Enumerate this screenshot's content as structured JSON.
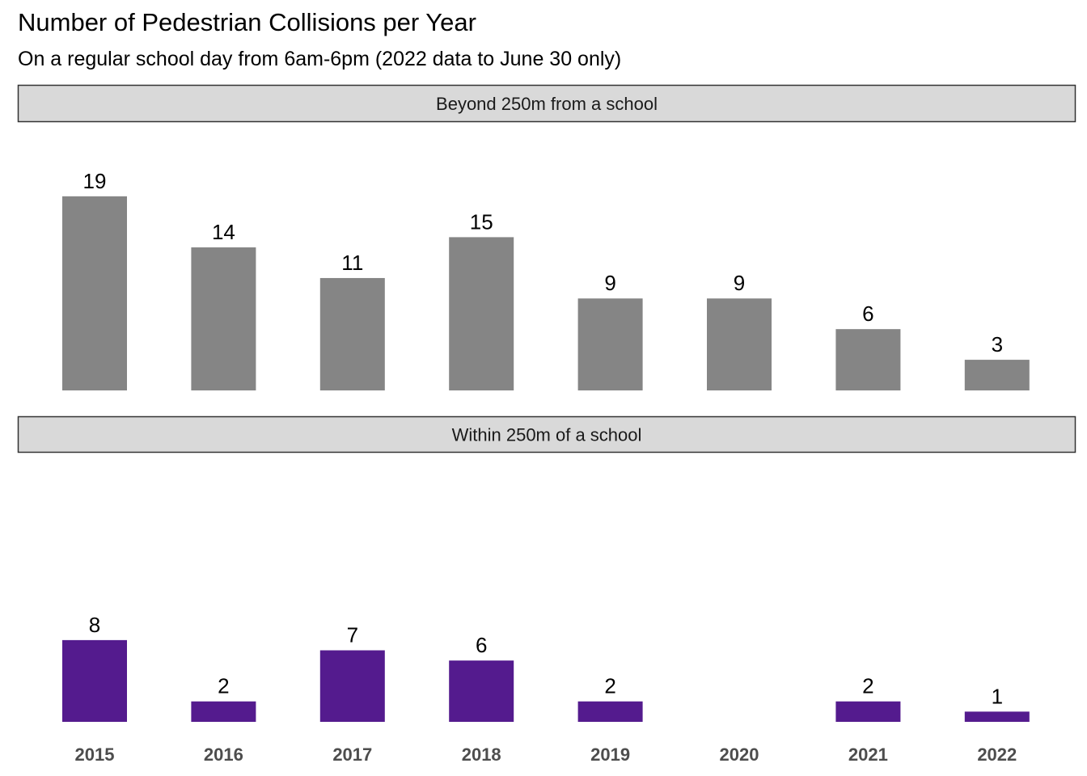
{
  "chart_data": {
    "type": "bar",
    "title": "Number of Pedestrian Collisions per Year",
    "subtitle": "On a regular school day from 6am-6pm (2022 data to June 30 only)",
    "xlabel": "",
    "ylabel": "",
    "categories": [
      "2015",
      "2016",
      "2017",
      "2018",
      "2019",
      "2020",
      "2021",
      "2022"
    ],
    "ylim": [
      0,
      20
    ],
    "grid": false,
    "legend": "none",
    "panels": [
      {
        "name": "Beyond 250m from a school",
        "color": "#858585",
        "values": [
          19,
          14,
          11,
          15,
          9,
          9,
          6,
          3
        ]
      },
      {
        "name": "Within 250m of a school",
        "color": "#541b8e",
        "values": [
          8,
          2,
          7,
          6,
          2,
          null,
          2,
          1
        ]
      }
    ]
  },
  "colors": {
    "strip_fill": "#d9d9d9",
    "strip_border": "#333333",
    "tick_label": "#4d4d4d"
  }
}
